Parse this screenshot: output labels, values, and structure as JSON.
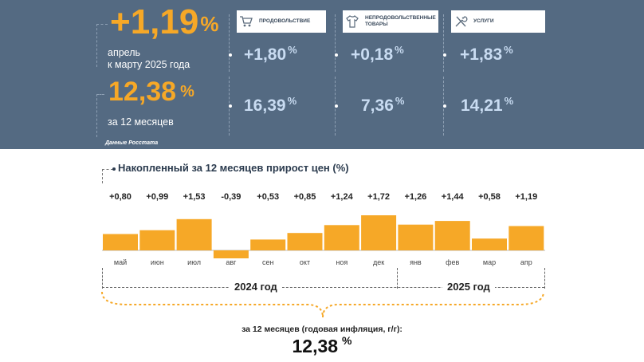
{
  "summary": {
    "monthly_value": "+1,19",
    "monthly_caption_line1": "апрель",
    "monthly_caption_line2": "к марту 2025 года",
    "annual_value": "12,38",
    "annual_caption": "за 12 месяцев",
    "percent_sign": "%",
    "source": "Данные Росстата"
  },
  "categories": [
    {
      "label_line1": "ПРОДОВОЛЬСТВИЕ",
      "label_line2": "",
      "monthly": "+1,80",
      "annual": "16,39",
      "icon": "shopping-cart-icon"
    },
    {
      "label_line1": "НЕПРОДОВОЛЬСТВЕННЫЕ",
      "label_line2": "ТОВАРЫ",
      "monthly": "+0,18",
      "annual": "7,36",
      "icon": "shirt-icon"
    },
    {
      "label_line1": "УСЛУГИ",
      "label_line2": "",
      "monthly": "+1,83",
      "annual": "14,21",
      "icon": "tools-icon"
    }
  ],
  "chart_data": {
    "type": "bar",
    "title": "Накопленный за 12 месяцев прирост цен (%)",
    "categories": [
      "май",
      "июн",
      "июл",
      "авг",
      "сен",
      "окт",
      "ноя",
      "дек",
      "янв",
      "фев",
      "мар",
      "апр"
    ],
    "values": [
      0.8,
      0.99,
      1.53,
      -0.39,
      0.53,
      0.85,
      1.24,
      1.72,
      1.26,
      1.44,
      0.58,
      1.19
    ],
    "value_labels": [
      "+0,80",
      "+0,99",
      "+1,53",
      "-0,39",
      "+0,53",
      "+0,85",
      "+1,24",
      "+1,72",
      "+1,26",
      "+1,44",
      "+0,58",
      "+1,19"
    ],
    "year_groups": [
      {
        "label": "2024 год",
        "months": 8
      },
      {
        "label": "2025 год",
        "months": 4
      }
    ],
    "bar_color": "#f6a827",
    "total_caption": "за 12 месяцев (годовая инфляция, г/г):",
    "total_value": "12,38",
    "total_unit": "%"
  }
}
